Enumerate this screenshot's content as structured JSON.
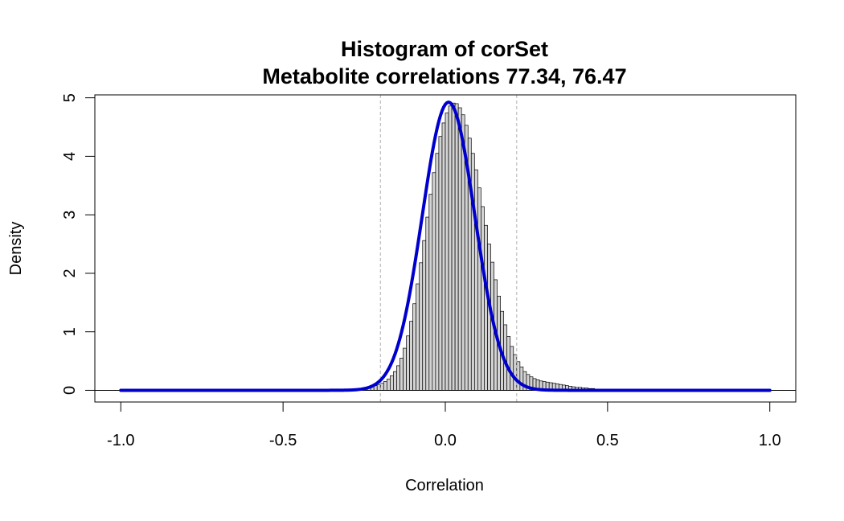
{
  "chart_data": {
    "type": "bar",
    "title": "Histogram of corSet",
    "subtitle": "Metabolite correlations 77.34, 76.47",
    "xlabel": "Correlation",
    "ylabel": "Density",
    "xlim": [
      -1.08,
      1.08
    ],
    "ylim": [
      -0.2,
      5.05
    ],
    "x_ticks": [
      {
        "value": -1.0,
        "label": "-1.0"
      },
      {
        "value": -0.5,
        "label": "-0.5"
      },
      {
        "value": 0.0,
        "label": "0.0"
      },
      {
        "value": 0.5,
        "label": "0.5"
      },
      {
        "value": 1.0,
        "label": "1.0"
      }
    ],
    "y_ticks": [
      {
        "value": 0,
        "label": "0"
      },
      {
        "value": 1,
        "label": "1"
      },
      {
        "value": 2,
        "label": "2"
      },
      {
        "value": 3,
        "label": "3"
      },
      {
        "value": 4,
        "label": "4"
      },
      {
        "value": 5,
        "label": "5"
      }
    ],
    "bin_width": 0.01,
    "bin_start": -0.3,
    "densities": [
      0.01,
      0.01,
      0.02,
      0.02,
      0.03,
      0.04,
      0.05,
      0.06,
      0.08,
      0.1,
      0.12,
      0.15,
      0.19,
      0.25,
      0.32,
      0.42,
      0.55,
      0.72,
      0.93,
      1.18,
      1.48,
      1.82,
      2.18,
      2.56,
      2.96,
      3.35,
      3.72,
      4.05,
      4.34,
      4.57,
      4.74,
      4.86,
      4.91,
      4.9,
      4.83,
      4.71,
      4.53,
      4.31,
      4.05,
      3.77,
      3.46,
      3.14,
      2.82,
      2.5,
      2.19,
      1.89,
      1.61,
      1.35,
      1.12,
      0.92,
      0.75,
      0.61,
      0.49,
      0.4,
      0.32,
      0.27,
      0.23,
      0.2,
      0.18,
      0.16,
      0.15,
      0.14,
      0.13,
      0.12,
      0.11,
      0.1,
      0.09,
      0.08,
      0.07,
      0.06,
      0.05,
      0.05,
      0.04,
      0.04,
      0.03,
      0.03
    ],
    "density_curve": {
      "color": "#0000cd",
      "mean": 0.01,
      "sd": 0.081,
      "range": [
        -1.0,
        1.0
      ]
    },
    "reference_lines": [
      -0.2,
      0.22
    ],
    "zero_line": 0,
    "bar_fill": "#d3d3d3",
    "bar_stroke": "#000000",
    "grid": false,
    "legend": "none"
  }
}
